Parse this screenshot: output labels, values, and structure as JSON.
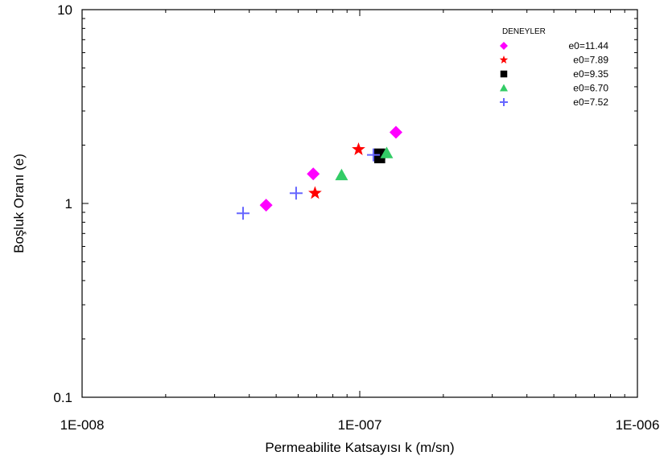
{
  "chart_data": {
    "type": "scatter",
    "x_scale": "log",
    "y_scale": "log",
    "xlim": [
      1e-08,
      1e-06
    ],
    "ylim": [
      0.1,
      10
    ],
    "xlabel": "Permeabilite Katsayısı k (m/sn)",
    "ylabel": "Boşluk Oranı (e)",
    "x_tick_labels": [
      {
        "value": 1e-08,
        "label": "1E-008"
      },
      {
        "value": 1e-07,
        "label": "1E-007"
      },
      {
        "value": 1e-06,
        "label": "1E-006"
      }
    ],
    "y_tick_labels": [
      {
        "value": 0.1,
        "label": "0.1"
      },
      {
        "value": 1,
        "label": "1"
      },
      {
        "value": 10,
        "label": "10"
      }
    ],
    "grid": false,
    "legend": {
      "title": "DENEYLER",
      "placement": "top-right"
    },
    "series": [
      {
        "name": "e0=11.44",
        "marker": "diamond",
        "color": "#ff00ff",
        "points": [
          [
            4.6e-08,
            0.98
          ],
          [
            6.8e-08,
            1.42
          ],
          [
            1.35e-07,
            2.33
          ]
        ]
      },
      {
        "name": "e0=7.89",
        "marker": "star",
        "color": "#ff0000",
        "points": [
          [
            6.9e-08,
            1.13
          ],
          [
            9.9e-08,
            1.9
          ]
        ]
      },
      {
        "name": "e0=9.35",
        "marker": "square",
        "color": "#000000",
        "points": [
          [
            1.18e-07,
            1.72
          ],
          [
            1.18e-07,
            1.8
          ]
        ]
      },
      {
        "name": "e0=6.70",
        "marker": "triangle",
        "color": "#33cc66",
        "points": [
          [
            8.6e-08,
            1.4
          ],
          [
            1.25e-07,
            1.82
          ]
        ]
      },
      {
        "name": "e0=7.52",
        "marker": "plus",
        "color": "#6666ff",
        "points": [
          [
            3.8e-08,
            0.89
          ],
          [
            5.9e-08,
            1.13
          ],
          [
            1.12e-07,
            1.78
          ]
        ]
      }
    ]
  }
}
